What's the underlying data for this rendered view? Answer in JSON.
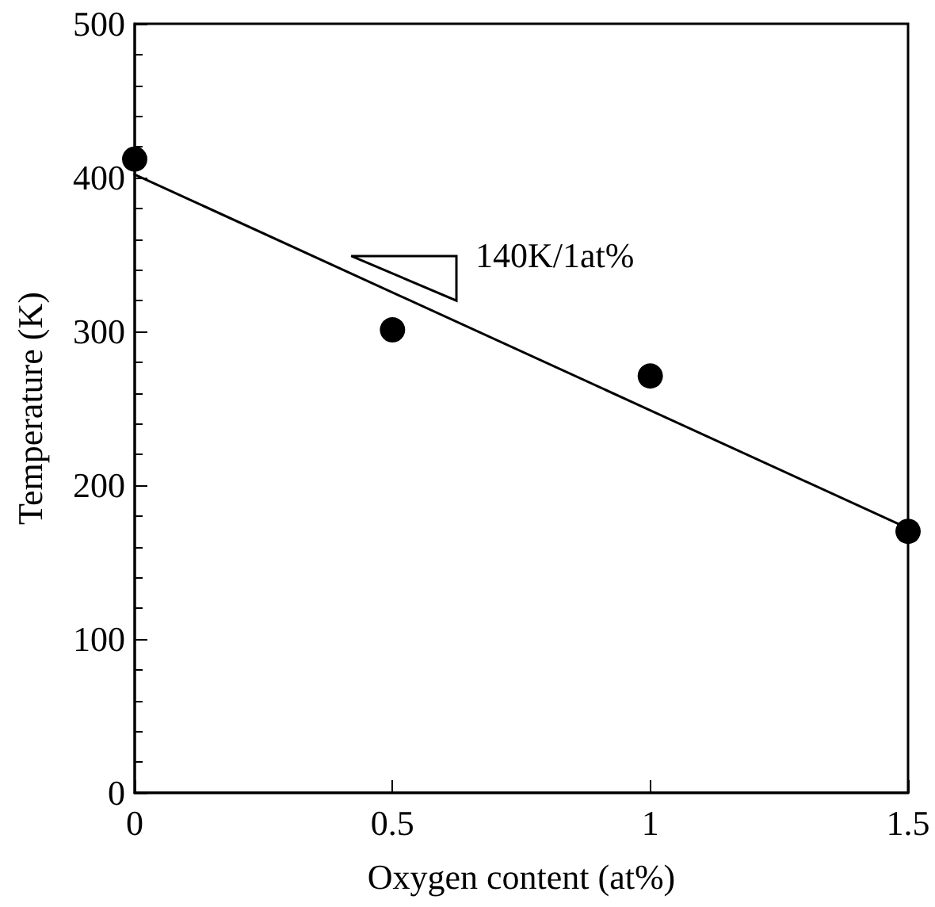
{
  "chart_data": {
    "type": "scatter",
    "xlabel": "Oxygen content (at%)",
    "ylabel": "Temperature (K)",
    "x": [
      0,
      0.5,
      1,
      1.5
    ],
    "series": [
      {
        "color": "#000000",
        "values": [
          412,
          301,
          271,
          170
        ],
        "marker": "circle"
      },
      {
        "type": "line",
        "color": "#000000",
        "x": [
          0,
          1.5
        ],
        "values": [
          402,
          172
        ],
        "marker": "none",
        "line_style": "solid"
      }
    ],
    "xlim": [
      0,
      1.5
    ],
    "xticks": [
      0,
      0.5,
      1,
      1.5
    ],
    "ylim": [
      0,
      500
    ],
    "yticks": [
      0,
      100,
      200,
      300,
      400,
      500
    ],
    "annotations": [
      "140K/1at%"
    ],
    "grid": false
  }
}
